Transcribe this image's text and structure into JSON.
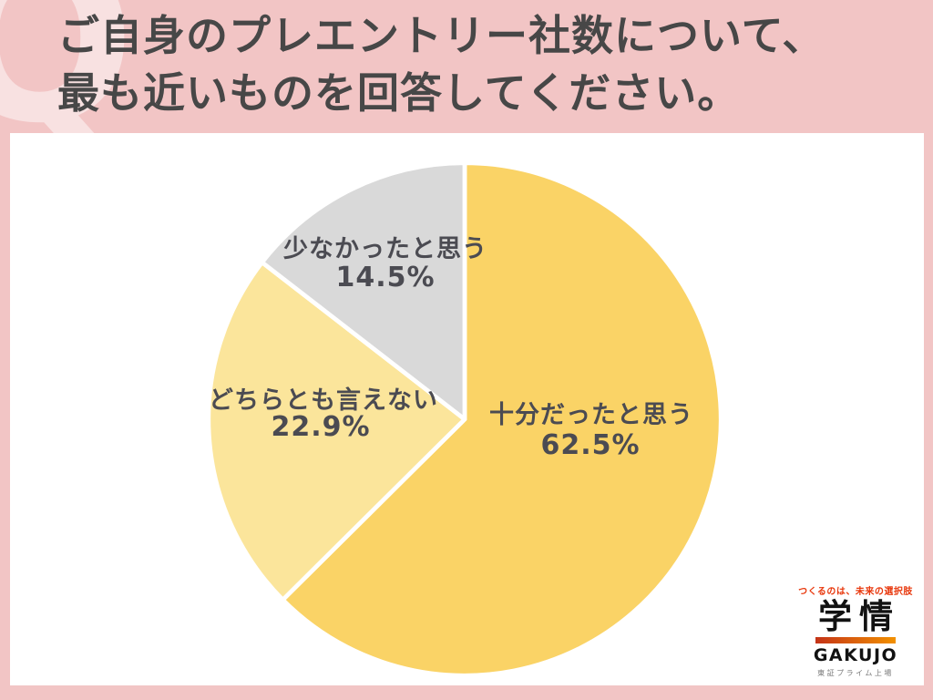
{
  "page": {
    "background_color": "#F2C5C5",
    "watermark_letter": "Q"
  },
  "title": {
    "line1": "ご自身のプレエントリー社数について、",
    "line2": "最も近いものを回答してください。",
    "color": "#474747"
  },
  "chart_data": {
    "type": "pie",
    "title": "",
    "categories": [
      "十分だったと思う",
      "どちらとも言えない",
      "少なかったと思う"
    ],
    "values": [
      62.5,
      22.9,
      14.5
    ],
    "unit": "%",
    "colors": [
      "#FAD366",
      "#FBE59B",
      "#D9D9D9"
    ],
    "start_angle_deg": -90,
    "direction": "clockwise",
    "separator_color": "#FFFFFF",
    "label_color": "#4B4B52",
    "legend_position": "none",
    "labels": [
      {
        "name": "十分だったと思う",
        "value_text": "62.5%"
      },
      {
        "name": "どちらとも言えない",
        "value_text": "22.9%"
      },
      {
        "name": "少なかったと思う",
        "value_text": "14.5%"
      }
    ]
  },
  "logo": {
    "tagline": "つくるのは、未来の選択肢",
    "company_kanji": "学情",
    "company_roman": "GAKUJO",
    "listing": "東証プライム上場",
    "tagline_color": "#E8380D",
    "bar_gradient": [
      "#C43318",
      "#F29100"
    ]
  }
}
